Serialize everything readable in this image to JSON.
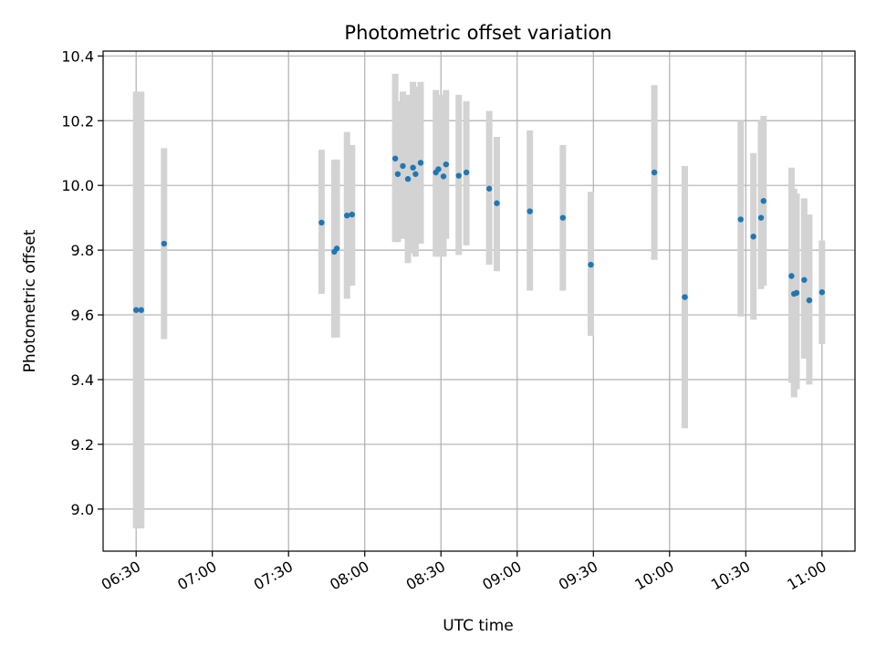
{
  "chart_data": {
    "type": "scatter",
    "title": "Photometric offset variation",
    "xlabel": "UTC time",
    "ylabel": "Photometric offset",
    "x_unit": "time of day (HH:MM, UTC)",
    "xlim": [
      "06:17",
      "11:13"
    ],
    "ylim": [
      8.87,
      10.415
    ],
    "x_ticks": [
      "06:30",
      "07:00",
      "07:30",
      "08:00",
      "08:30",
      "09:00",
      "09:30",
      "10:00",
      "10:30",
      "11:00"
    ],
    "y_ticks": [
      9.0,
      9.2,
      9.4,
      9.6,
      9.8,
      10.0,
      10.2,
      10.4
    ],
    "grid": true,
    "legend": "none",
    "point_color": "#1f77b4",
    "errorbar_color": "#d3d3d3",
    "points": [
      {
        "x": "06:30",
        "y": 9.615,
        "y_low": 8.94,
        "y_high": 10.29
      },
      {
        "x": "06:32",
        "y": 9.615,
        "y_low": 8.94,
        "y_high": 10.29
      },
      {
        "x": "06:41",
        "y": 9.82,
        "y_low": 9.525,
        "y_high": 10.115
      },
      {
        "x": "07:43",
        "y": 9.885,
        "y_low": 9.665,
        "y_high": 10.11
      },
      {
        "x": "07:48",
        "y": 9.795,
        "y_low": 9.53,
        "y_high": 10.08
      },
      {
        "x": "07:49",
        "y": 9.805,
        "y_low": 9.53,
        "y_high": 10.08
      },
      {
        "x": "07:53",
        "y": 9.907,
        "y_low": 9.65,
        "y_high": 10.165
      },
      {
        "x": "07:55",
        "y": 9.91,
        "y_low": 9.69,
        "y_high": 10.125
      },
      {
        "x": "08:12",
        "y": 10.083,
        "y_low": 9.825,
        "y_high": 10.345
      },
      {
        "x": "08:13",
        "y": 10.035,
        "y_low": 9.825,
        "y_high": 10.26
      },
      {
        "x": "08:15",
        "y": 10.06,
        "y_low": 9.835,
        "y_high": 10.29
      },
      {
        "x": "08:17",
        "y": 10.02,
        "y_low": 9.76,
        "y_high": 10.28
      },
      {
        "x": "08:19",
        "y": 10.055,
        "y_low": 9.79,
        "y_high": 10.32
      },
      {
        "x": "08:20",
        "y": 10.035,
        "y_low": 9.78,
        "y_high": 10.305
      },
      {
        "x": "08:22",
        "y": 10.07,
        "y_low": 9.82,
        "y_high": 10.32
      },
      {
        "x": "08:28",
        "y": 10.04,
        "y_low": 9.78,
        "y_high": 10.295
      },
      {
        "x": "08:29",
        "y": 10.05,
        "y_low": 9.78,
        "y_high": 10.28
      },
      {
        "x": "08:31",
        "y": 10.028,
        "y_low": 9.78,
        "y_high": 10.28
      },
      {
        "x": "08:32",
        "y": 10.065,
        "y_low": 9.835,
        "y_high": 10.295
      },
      {
        "x": "08:37",
        "y": 10.03,
        "y_low": 9.785,
        "y_high": 10.28
      },
      {
        "x": "08:40",
        "y": 10.04,
        "y_low": 9.815,
        "y_high": 10.26
      },
      {
        "x": "08:49",
        "y": 9.99,
        "y_low": 9.755,
        "y_high": 10.23
      },
      {
        "x": "08:52",
        "y": 9.945,
        "y_low": 9.735,
        "y_high": 10.15
      },
      {
        "x": "09:05",
        "y": 9.92,
        "y_low": 9.675,
        "y_high": 10.17
      },
      {
        "x": "09:18",
        "y": 9.9,
        "y_low": 9.675,
        "y_high": 10.125
      },
      {
        "x": "09:29",
        "y": 9.755,
        "y_low": 9.535,
        "y_high": 9.98
      },
      {
        "x": "09:54",
        "y": 10.04,
        "y_low": 9.77,
        "y_high": 10.31
      },
      {
        "x": "10:06",
        "y": 9.655,
        "y_low": 9.25,
        "y_high": 10.06
      },
      {
        "x": "10:28",
        "y": 9.895,
        "y_low": 9.595,
        "y_high": 10.2
      },
      {
        "x": "10:33",
        "y": 9.842,
        "y_low": 9.585,
        "y_high": 10.1
      },
      {
        "x": "10:36",
        "y": 9.9,
        "y_low": 9.68,
        "y_high": 10.2
      },
      {
        "x": "10:37",
        "y": 9.952,
        "y_low": 9.69,
        "y_high": 10.215
      },
      {
        "x": "10:48",
        "y": 9.72,
        "y_low": 9.39,
        "y_high": 10.055
      },
      {
        "x": "10:49",
        "y": 9.665,
        "y_low": 9.345,
        "y_high": 9.99
      },
      {
        "x": "10:50",
        "y": 9.668,
        "y_low": 9.37,
        "y_high": 9.975
      },
      {
        "x": "10:53",
        "y": 9.708,
        "y_low": 9.465,
        "y_high": 9.96
      },
      {
        "x": "10:55",
        "y": 9.645,
        "y_low": 9.385,
        "y_high": 9.91
      },
      {
        "x": "11:00",
        "y": 9.67,
        "y_low": 9.51,
        "y_high": 9.83
      }
    ]
  }
}
